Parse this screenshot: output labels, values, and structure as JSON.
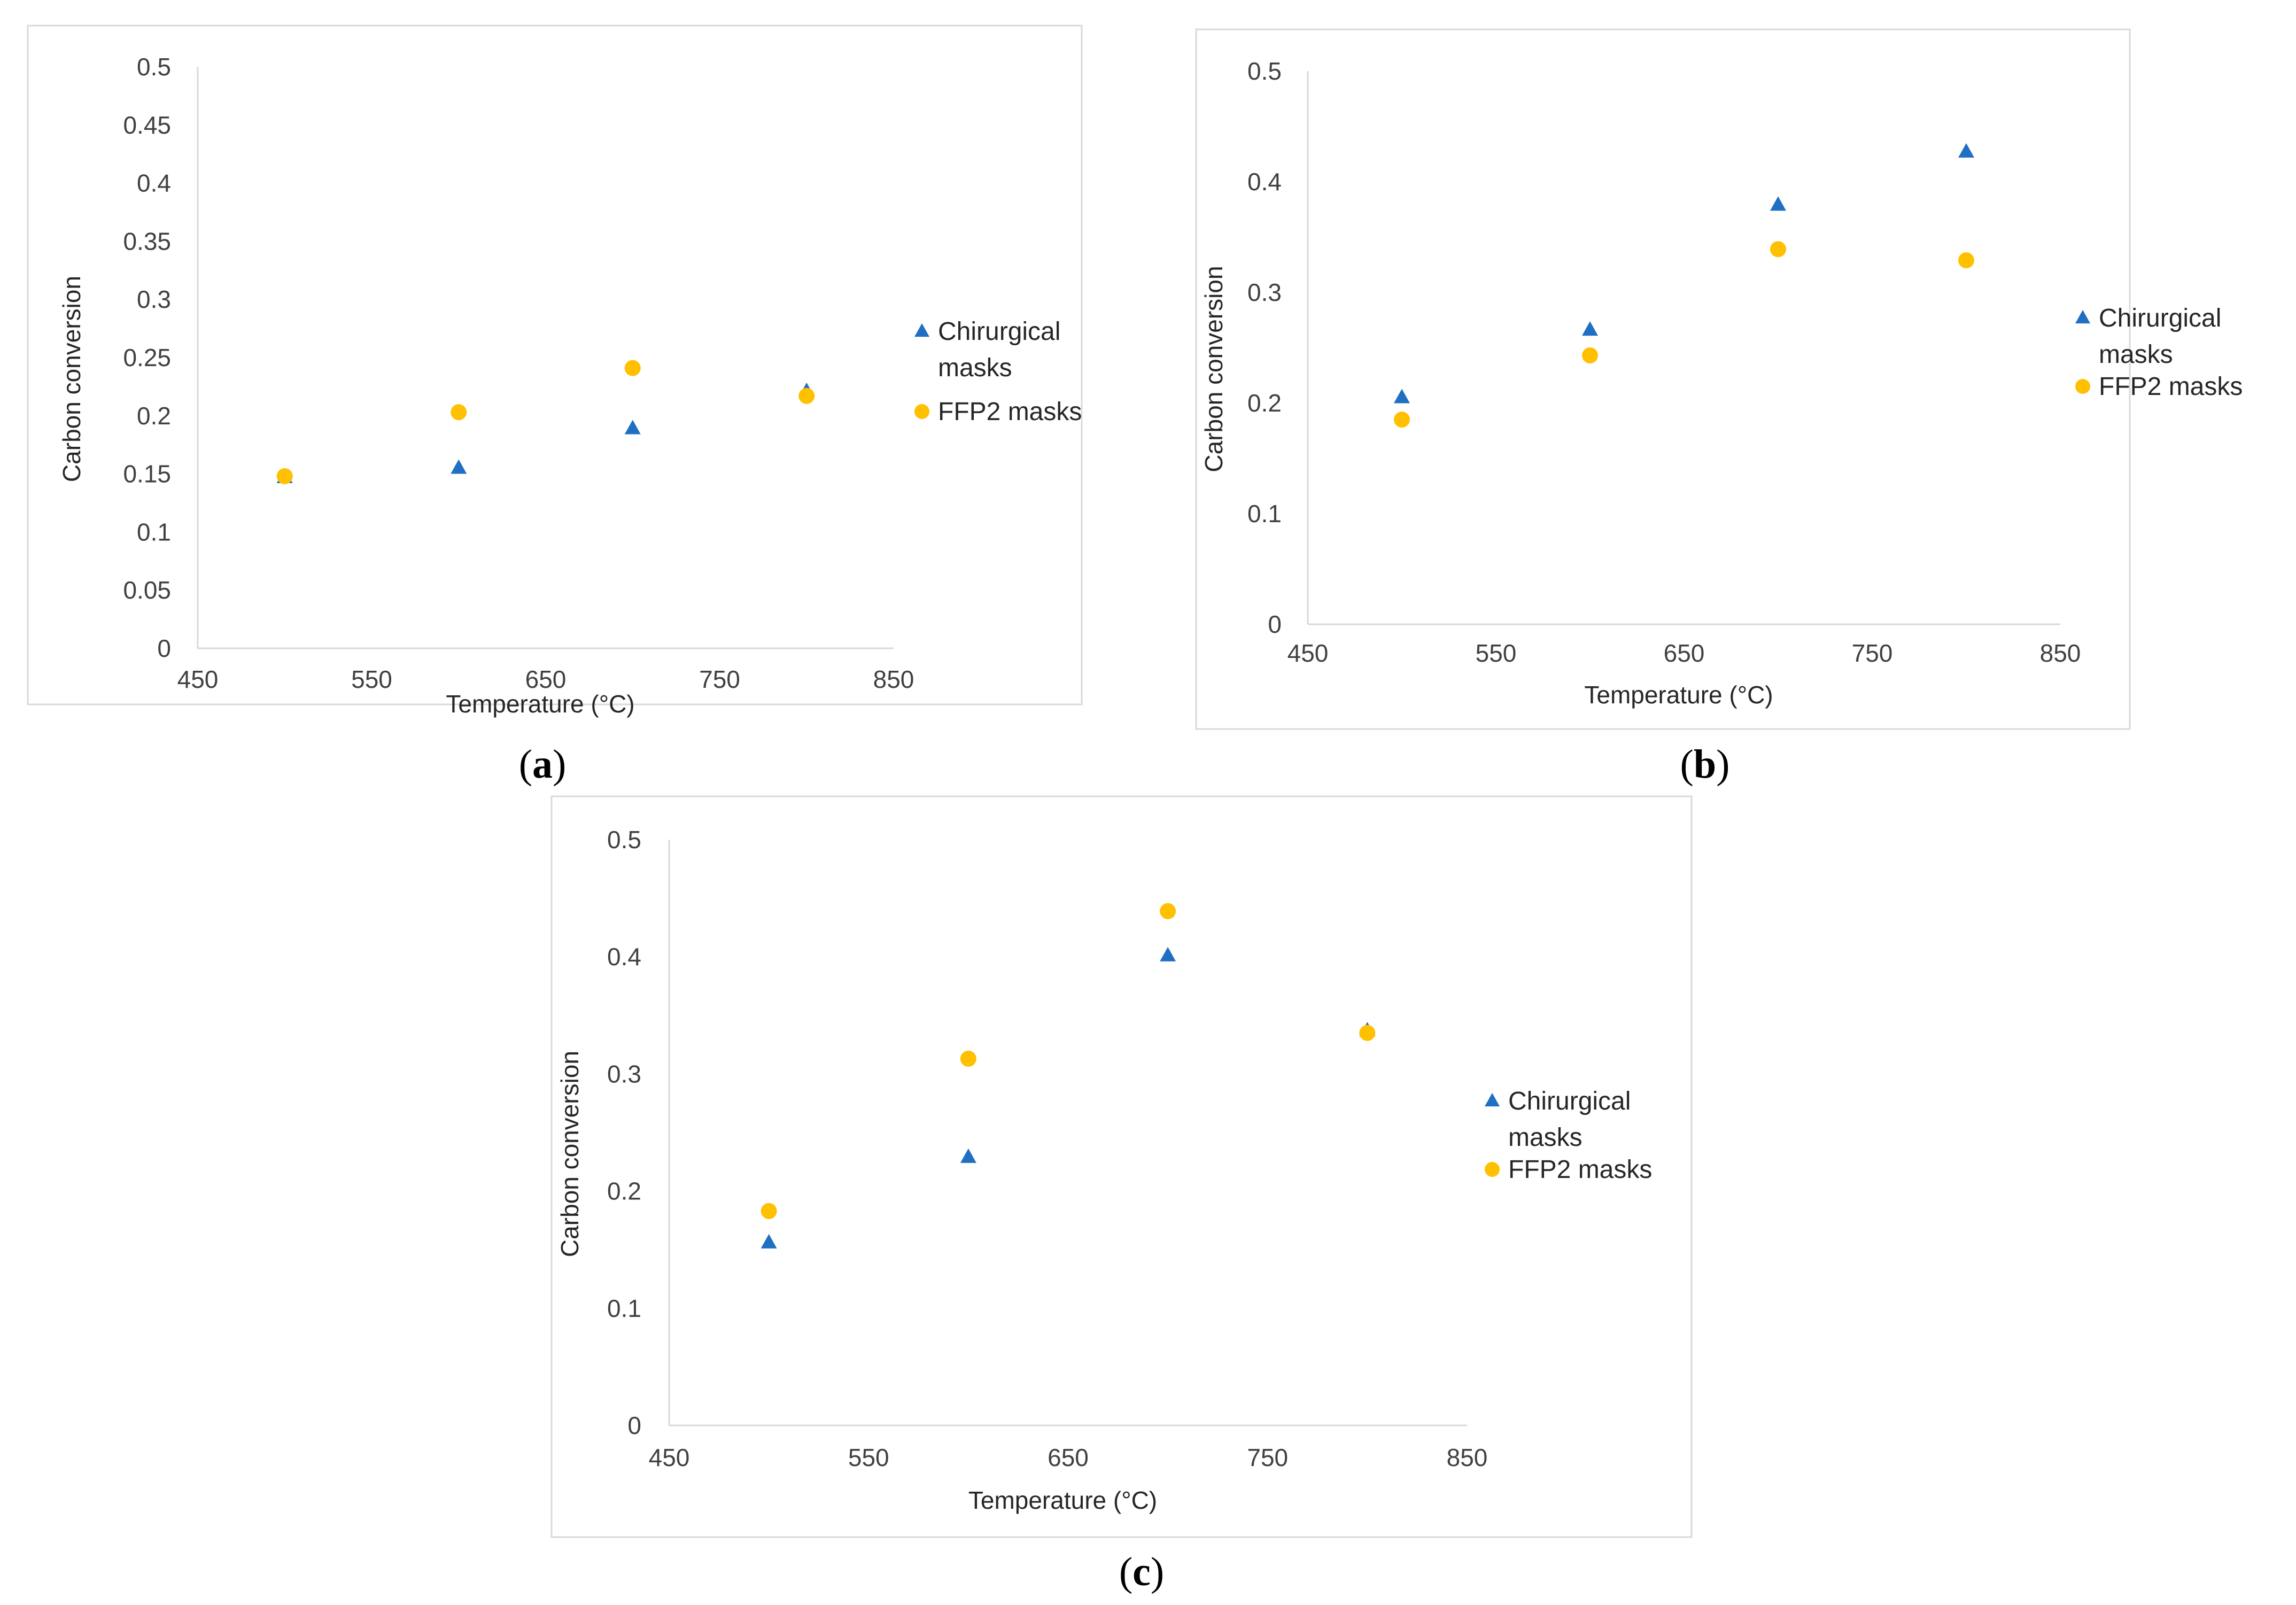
{
  "figure": {
    "panel_labels": [
      {
        "open": "(",
        "letter": "a",
        "close": ")"
      },
      {
        "open": "(",
        "letter": "b",
        "close": ")"
      },
      {
        "open": "(",
        "letter": "c",
        "close": ")"
      }
    ]
  },
  "colors": {
    "chirurgical": "#1f6fc2",
    "ffp2": "#ffc000",
    "axis": "#d9d9d9",
    "frame": "#d9d9d9"
  },
  "chart_data": [
    {
      "type": "scatter",
      "title": "",
      "xlabel": "Temperature (°C)",
      "ylabel": "Carbon conversion",
      "xlim": [
        450,
        850
      ],
      "ylim": [
        0,
        0.5
      ],
      "xticks": [
        450,
        550,
        650,
        750,
        850
      ],
      "xtick_labels": [
        "450",
        "550",
        "650",
        "750",
        "850"
      ],
      "yticks": [
        0,
        0.05,
        0.1,
        0.15,
        0.2,
        0.25,
        0.3,
        0.35,
        0.4,
        0.45,
        0.5
      ],
      "ytick_labels": [
        "0",
        "0.05",
        "0.1",
        "0.15",
        "0.2",
        "0.25",
        "0.3",
        "0.35",
        "0.4",
        "0.45",
        "0.5"
      ],
      "grid": false,
      "legend": "right",
      "series": [
        {
          "name": "Chirurgical masks",
          "legend_lines": [
            "Chirurgical",
            "masks"
          ],
          "marker": "triangle",
          "x": [
            500,
            600,
            700,
            800
          ],
          "y": [
            0.147,
            0.155,
            0.189,
            0.221
          ]
        },
        {
          "name": "FFP2 masks",
          "legend_lines": [
            "FFP2 masks"
          ],
          "marker": "circle",
          "x": [
            500,
            600,
            700,
            800
          ],
          "y": [
            0.148,
            0.203,
            0.241,
            0.217
          ]
        }
      ]
    },
    {
      "type": "scatter",
      "title": "",
      "xlabel": "Temperature (°C)",
      "ylabel": "Carbon conversion",
      "xlim": [
        450,
        850
      ],
      "ylim": [
        0,
        0.5
      ],
      "xticks": [
        450,
        550,
        650,
        750,
        850
      ],
      "xtick_labels": [
        "450",
        "550",
        "650",
        "750",
        "850"
      ],
      "yticks": [
        0,
        0.1,
        0.2,
        0.3,
        0.4,
        0.5
      ],
      "ytick_labels": [
        "0",
        "0.1",
        "0.2",
        "0.3",
        "0.4",
        "0.5"
      ],
      "grid": false,
      "legend": "right",
      "series": [
        {
          "name": "Chirurgical masks",
          "legend_lines": [
            "Chirurgical",
            "masks"
          ],
          "marker": "triangle",
          "x": [
            500,
            600,
            700,
            800
          ],
          "y": [
            0.205,
            0.266,
            0.379,
            0.427
          ]
        },
        {
          "name": "FFP2 masks",
          "legend_lines": [
            "FFP2 masks"
          ],
          "marker": "circle",
          "x": [
            500,
            600,
            700,
            800
          ],
          "y": [
            0.185,
            0.243,
            0.339,
            0.329
          ]
        }
      ]
    },
    {
      "type": "scatter",
      "title": "",
      "xlabel": "Temperature (°C)",
      "ylabel": "Carbon conversion",
      "xlim": [
        450,
        850
      ],
      "ylim": [
        0,
        0.5
      ],
      "xticks": [
        450,
        550,
        650,
        750,
        850
      ],
      "xtick_labels": [
        "450",
        "550",
        "650",
        "750",
        "850"
      ],
      "yticks": [
        0,
        0.1,
        0.2,
        0.3,
        0.4,
        0.5
      ],
      "ytick_labels": [
        "0",
        "0.1",
        "0.2",
        "0.3",
        "0.4",
        "0.5"
      ],
      "grid": false,
      "legend": "right",
      "series": [
        {
          "name": "Chirurgical masks",
          "legend_lines": [
            "Chirurgical",
            "masks"
          ],
          "marker": "triangle",
          "x": [
            500,
            600,
            700,
            800
          ],
          "y": [
            0.156,
            0.229,
            0.401,
            0.337
          ]
        },
        {
          "name": "FFP2 masks",
          "legend_lines": [
            "FFP2 masks"
          ],
          "marker": "circle",
          "x": [
            500,
            600,
            700,
            800
          ],
          "y": [
            0.183,
            0.313,
            0.439,
            0.335
          ]
        }
      ]
    }
  ]
}
